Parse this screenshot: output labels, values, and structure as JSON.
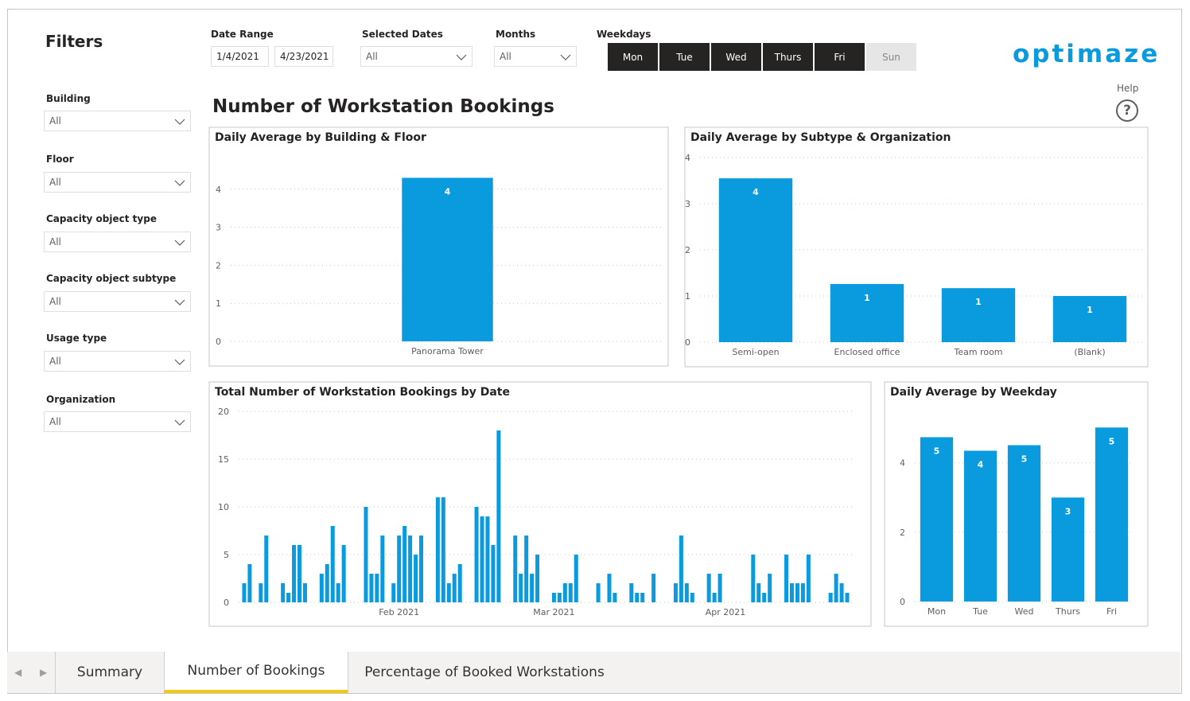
{
  "filters": {
    "title": "Filters",
    "items": [
      {
        "label": "Building",
        "value": "All"
      },
      {
        "label": "Floor",
        "value": "All"
      },
      {
        "label": "Capacity object type",
        "value": "All"
      },
      {
        "label": "Capacity object subtype",
        "value": "All"
      },
      {
        "label": "Usage type",
        "value": "All"
      },
      {
        "label": "Organization",
        "value": "All"
      }
    ]
  },
  "top_filters": {
    "date_range": {
      "label": "Date Range",
      "start": "1/4/2021",
      "end": "4/23/2021"
    },
    "selected_dates": {
      "label": "Selected Dates",
      "value": "All"
    },
    "months": {
      "label": "Months",
      "value": "All"
    },
    "weekdays": {
      "label": "Weekdays",
      "options": [
        "Mon",
        "Tue",
        "Wed",
        "Thurs",
        "Fri",
        "Sun"
      ],
      "selected": [
        true,
        true,
        true,
        true,
        true,
        false
      ]
    }
  },
  "logo": "optimaze",
  "help": "Help",
  "page_title": "Number of Workstation Bookings",
  "chart_data": [
    {
      "type": "bar",
      "title": "Daily Average by Building & Floor",
      "categories": [
        "Panorama Tower"
      ],
      "values": [
        4.3
      ],
      "value_labels": [
        "4"
      ],
      "color": "#0a9ade",
      "ylim": [
        0,
        5
      ],
      "yticks": [
        0,
        1,
        2,
        3,
        4
      ],
      "grid": true
    },
    {
      "type": "bar",
      "title": "Daily Average by Subtype & Organization",
      "categories": [
        "Semi-open",
        "Enclosed office",
        "Team room",
        "(Blank)"
      ],
      "values": [
        3.55,
        1.26,
        1.17,
        1.0
      ],
      "value_labels": [
        "4",
        "1",
        "1",
        "1"
      ],
      "color": "#0a9ade",
      "ylim": [
        0,
        4
      ],
      "yticks": [
        0,
        1,
        2,
        3,
        4
      ],
      "grid": true
    },
    {
      "type": "bar",
      "title": "Total Number of Workstation Bookings by Date",
      "values": [
        2,
        4,
        null,
        2,
        7,
        null,
        null,
        2,
        1,
        6,
        6,
        2,
        null,
        null,
        3,
        4,
        8,
        2,
        6,
        null,
        null,
        null,
        10,
        3,
        3,
        7,
        null,
        2,
        7,
        8,
        7,
        5,
        7,
        null,
        null,
        11,
        11,
        2,
        3,
        4,
        null,
        null,
        10,
        9,
        9,
        6,
        18,
        null,
        null,
        7,
        3,
        7,
        3,
        5,
        null,
        null,
        1,
        1,
        2,
        2,
        5,
        null,
        null,
        null,
        2,
        null,
        3,
        1,
        null,
        null,
        2,
        1,
        1,
        null,
        3,
        null,
        null,
        null,
        2,
        7,
        2,
        1,
        null,
        null,
        3,
        1,
        3,
        null,
        null,
        null,
        null,
        null,
        5,
        2,
        1,
        3,
        null,
        null,
        5,
        2,
        2,
        2,
        5,
        null,
        null,
        null,
        1,
        3,
        2,
        1
      ],
      "color": "#0a9ade",
      "xlim": [
        -1,
        110
      ],
      "xticks": [
        {
          "value": 28,
          "label": "Feb 2021"
        },
        {
          "value": 56,
          "label": "Mar 2021"
        },
        {
          "value": 87,
          "label": "Apr 2021"
        }
      ],
      "ylim": [
        0,
        20
      ],
      "yticks": [
        0,
        5,
        10,
        15,
        20
      ],
      "grid": true
    },
    {
      "type": "bar",
      "title": "Daily Average by Weekday",
      "categories": [
        "Mon",
        "Tue",
        "Wed",
        "Thurs",
        "Fri"
      ],
      "values": [
        4.74,
        4.35,
        4.51,
        3.0,
        5.02
      ],
      "value_labels": [
        "5",
        "4",
        "5",
        "3",
        "5"
      ],
      "color": "#0a9ade",
      "ylim": [
        0,
        5.6
      ],
      "yticks": [
        0,
        2,
        4
      ],
      "grid": true
    }
  ],
  "tabs": {
    "items": [
      "Summary",
      "Number of Bookings",
      "Percentage of Booked Workstations"
    ],
    "active": 1
  }
}
